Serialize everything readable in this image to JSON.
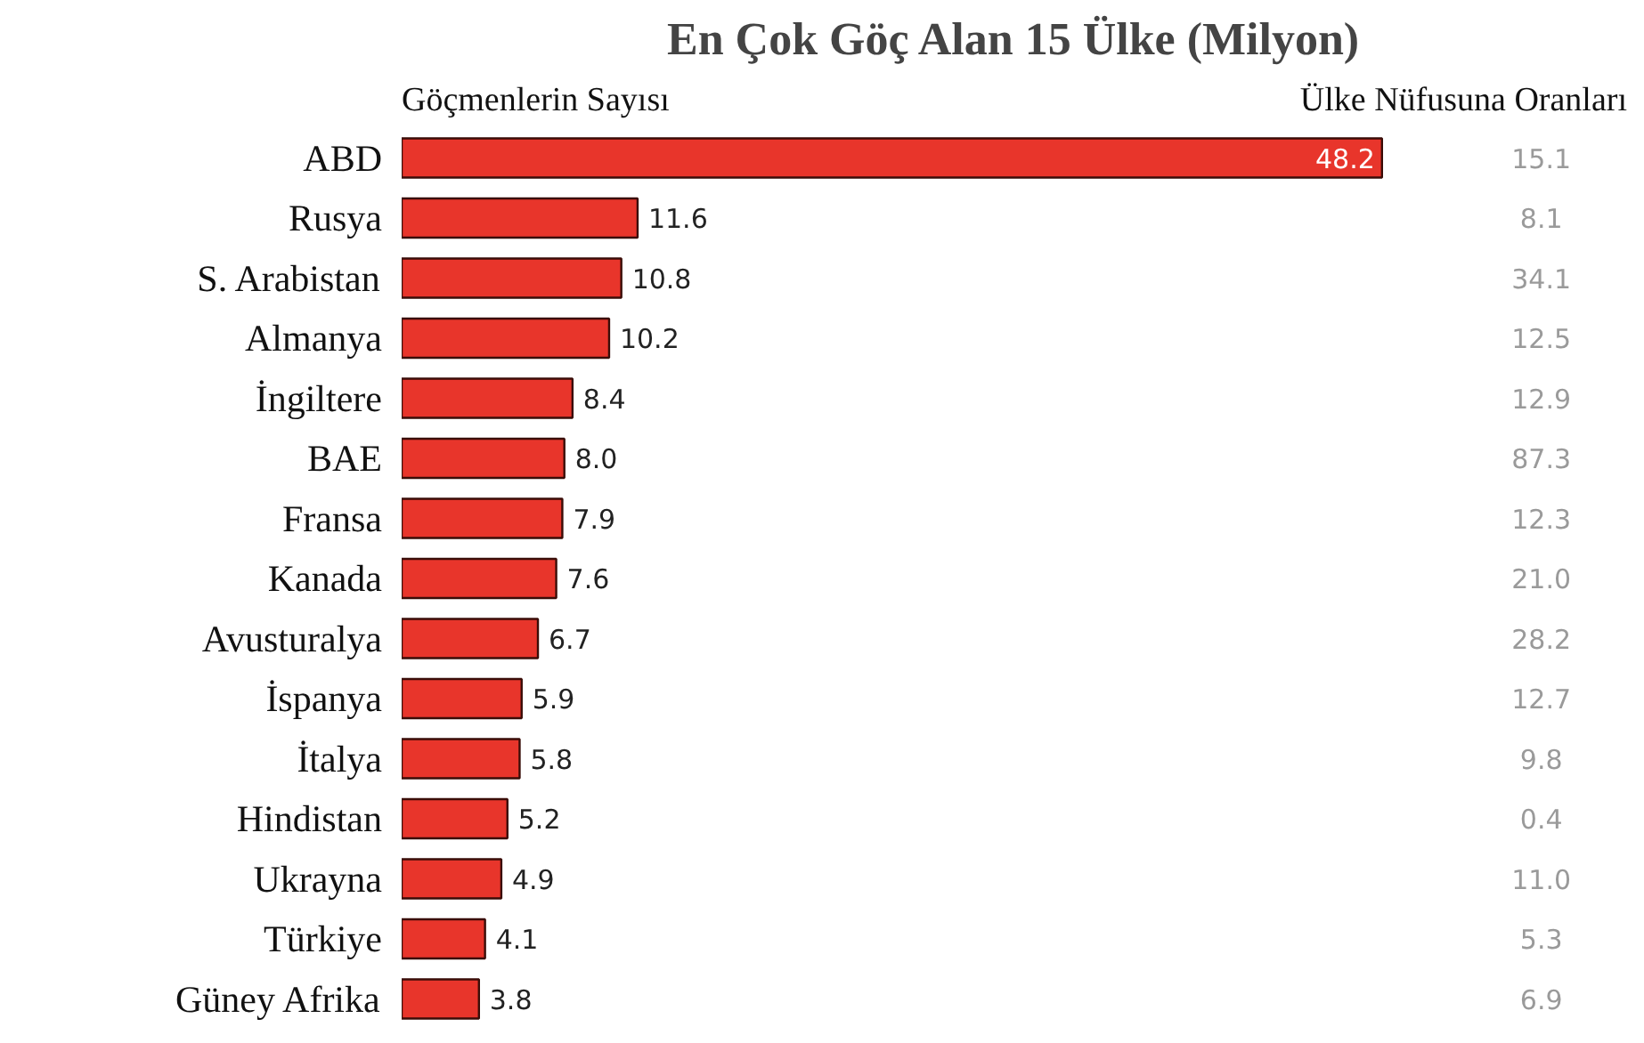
{
  "chart_data": {
    "type": "bar",
    "orientation": "horizontal",
    "title": "En Çok Göç Alan 15 Ülke (Milyon)",
    "xlabel": "Göçmenlerin Sayısı",
    "y2label": "Ülke Nüfusuna Oranları",
    "categories": [
      "ABD",
      "Rusya",
      "S. Arabistan",
      "Almanya",
      "İngiltere",
      "BAE",
      "Fransa",
      "Kanada",
      "Avusturalya",
      "İspanya",
      "İtalya",
      "Hindistan",
      "Ukrayna",
      "Türkiye",
      "Güney Afrika"
    ],
    "values": [
      48.2,
      11.6,
      10.8,
      10.2,
      8.4,
      8.0,
      7.9,
      7.6,
      6.7,
      5.9,
      5.8,
      5.2,
      4.9,
      4.1,
      3.8
    ],
    "value_labels": [
      "48.2",
      "11.6",
      "10.8",
      "10.2",
      "8.4",
      "8.0",
      "7.9",
      "7.6",
      "6.7",
      "5.9",
      "5.8",
      "5.2",
      "4.9",
      "4.1",
      "3.8"
    ],
    "color": "#e8352b",
    "annotations": [
      "15.1",
      "8.1",
      "34.1",
      "12.5",
      "12.9",
      "87.3",
      "12.3",
      "21.0",
      "28.2",
      "12.7",
      "9.8",
      "0.4",
      "11.0",
      "5.3",
      "6.9"
    ]
  }
}
